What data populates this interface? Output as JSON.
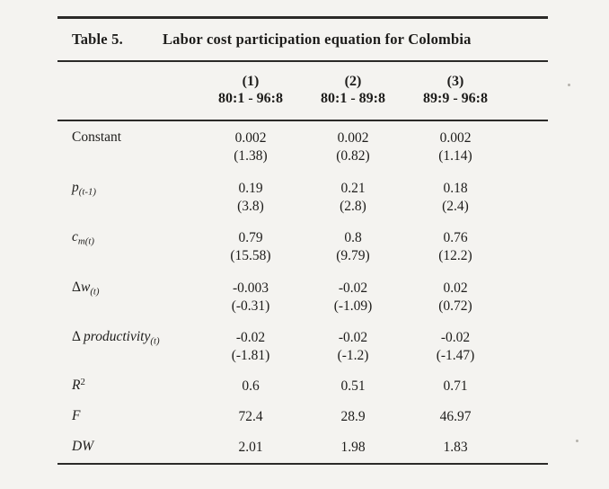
{
  "table": {
    "title_label": "Table 5.",
    "title": "Labor cost participation equation for Colombia",
    "columns": [
      {
        "num": "(1)",
        "range": "80:1 - 96:8"
      },
      {
        "num": "(2)",
        "range": "80:1 - 89:8"
      },
      {
        "num": "(3)",
        "range": "89:9 - 96:8"
      }
    ],
    "rows": [
      {
        "label": {
          "pre": "",
          "main": "Constant",
          "sub": "",
          "sup": ""
        },
        "cells": [
          {
            "coef": "0.002",
            "t": "(1.38)"
          },
          {
            "coef": "0.002",
            "t": "(0.82)"
          },
          {
            "coef": "0.002",
            "t": "(1.14)"
          }
        ]
      },
      {
        "label": {
          "pre": "",
          "main": "p",
          "sub": "(t-1)",
          "sup": ""
        },
        "cells": [
          {
            "coef": "0.19",
            "t": "(3.8)"
          },
          {
            "coef": "0.21",
            "t": "(2.8)"
          },
          {
            "coef": "0.18",
            "t": "(2.4)"
          }
        ]
      },
      {
        "label": {
          "pre": "",
          "main": "c",
          "sub": "m(t)",
          "sup": ""
        },
        "cells": [
          {
            "coef": "0.79",
            "t": "(15.58)"
          },
          {
            "coef": "0.8",
            "t": "(9.79)"
          },
          {
            "coef": "0.76",
            "t": "(12.2)"
          }
        ]
      },
      {
        "label": {
          "pre": "Δ",
          "main": "w",
          "sub": "(t)",
          "sup": ""
        },
        "cells": [
          {
            "coef": "-0.003",
            "t": "(-0.31)"
          },
          {
            "coef": "-0.02",
            "t": "(-1.09)"
          },
          {
            "coef": "0.02",
            "t": "(0.72)"
          }
        ]
      },
      {
        "label": {
          "pre": "Δ ",
          "main": "productivity",
          "sub": "(t)",
          "sup": ""
        },
        "cells": [
          {
            "coef": "-0.02",
            "t": "(-1.81)"
          },
          {
            "coef": "-0.02",
            "t": "(-1.2)"
          },
          {
            "coef": "-0.02",
            "t": "(-1.47)"
          }
        ]
      },
      {
        "label": {
          "pre": "",
          "main": "R",
          "sub": "",
          "sup": "2"
        },
        "cells": [
          {
            "coef": "0.6",
            "t": ""
          },
          {
            "coef": "0.51",
            "t": ""
          },
          {
            "coef": "0.71",
            "t": ""
          }
        ]
      },
      {
        "label": {
          "pre": "",
          "main": "F",
          "sub": "",
          "sup": ""
        },
        "cells": [
          {
            "coef": "72.4",
            "t": ""
          },
          {
            "coef": "28.9",
            "t": ""
          },
          {
            "coef": "46.97",
            "t": ""
          }
        ]
      },
      {
        "label": {
          "pre": "",
          "main": "DW",
          "sub": "",
          "sup": ""
        },
        "cells": [
          {
            "coef": "2.01",
            "t": ""
          },
          {
            "coef": "1.98",
            "t": ""
          },
          {
            "coef": "1.83",
            "t": ""
          }
        ]
      }
    ]
  }
}
